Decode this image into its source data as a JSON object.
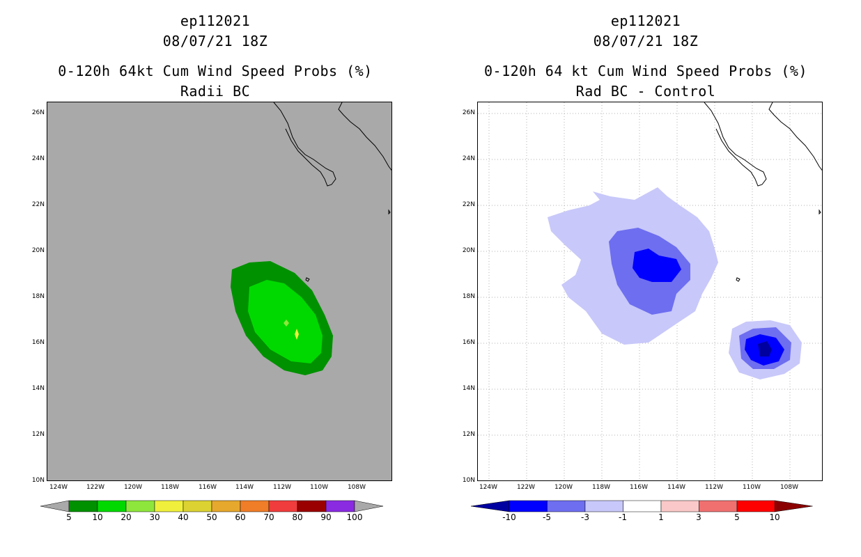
{
  "left_panel": {
    "storm_id": "ep112021",
    "datetime": "08/07/21 18Z",
    "title": "0-120h 64kt Cum Wind Speed Probs (%)",
    "subtitle": "Radii BC",
    "background_color": "#a9a9a9",
    "colorbar": {
      "colors": [
        "#009100",
        "#00d900",
        "#8ee63c",
        "#f0f03c",
        "#dcd232",
        "#e6a82d",
        "#f07d28",
        "#f03c3c",
        "#9b0000",
        "#8a2be2"
      ],
      "labels": [
        "5",
        "10",
        "20",
        "30",
        "40",
        "50",
        "60",
        "70",
        "80",
        "90",
        "100"
      ]
    }
  },
  "right_panel": {
    "storm_id": "ep112021",
    "datetime": "08/07/21 18Z",
    "title": "0-120h 64 kt Cum Wind Speed Probs (%)",
    "subtitle": "Rad BC - Control",
    "colorbar": {
      "colors": [
        "#0000a0",
        "#0000ff",
        "#6e6ef0",
        "#c8c8fa",
        "#ffffff",
        "#fac8c8",
        "#f07070",
        "#ff0000",
        "#8b0000"
      ],
      "labels": [
        "-10",
        "-5",
        "-3",
        "-1",
        "1",
        "3",
        "5",
        "10"
      ]
    }
  },
  "lat_labels": [
    "26N",
    "24N",
    "22N",
    "20N",
    "18N",
    "16N",
    "14N",
    "12N",
    "10N"
  ],
  "lon_labels": [
    "124W",
    "122W",
    "120W",
    "118W",
    "116W",
    "114W",
    "112W",
    "110W",
    "108W"
  ]
}
